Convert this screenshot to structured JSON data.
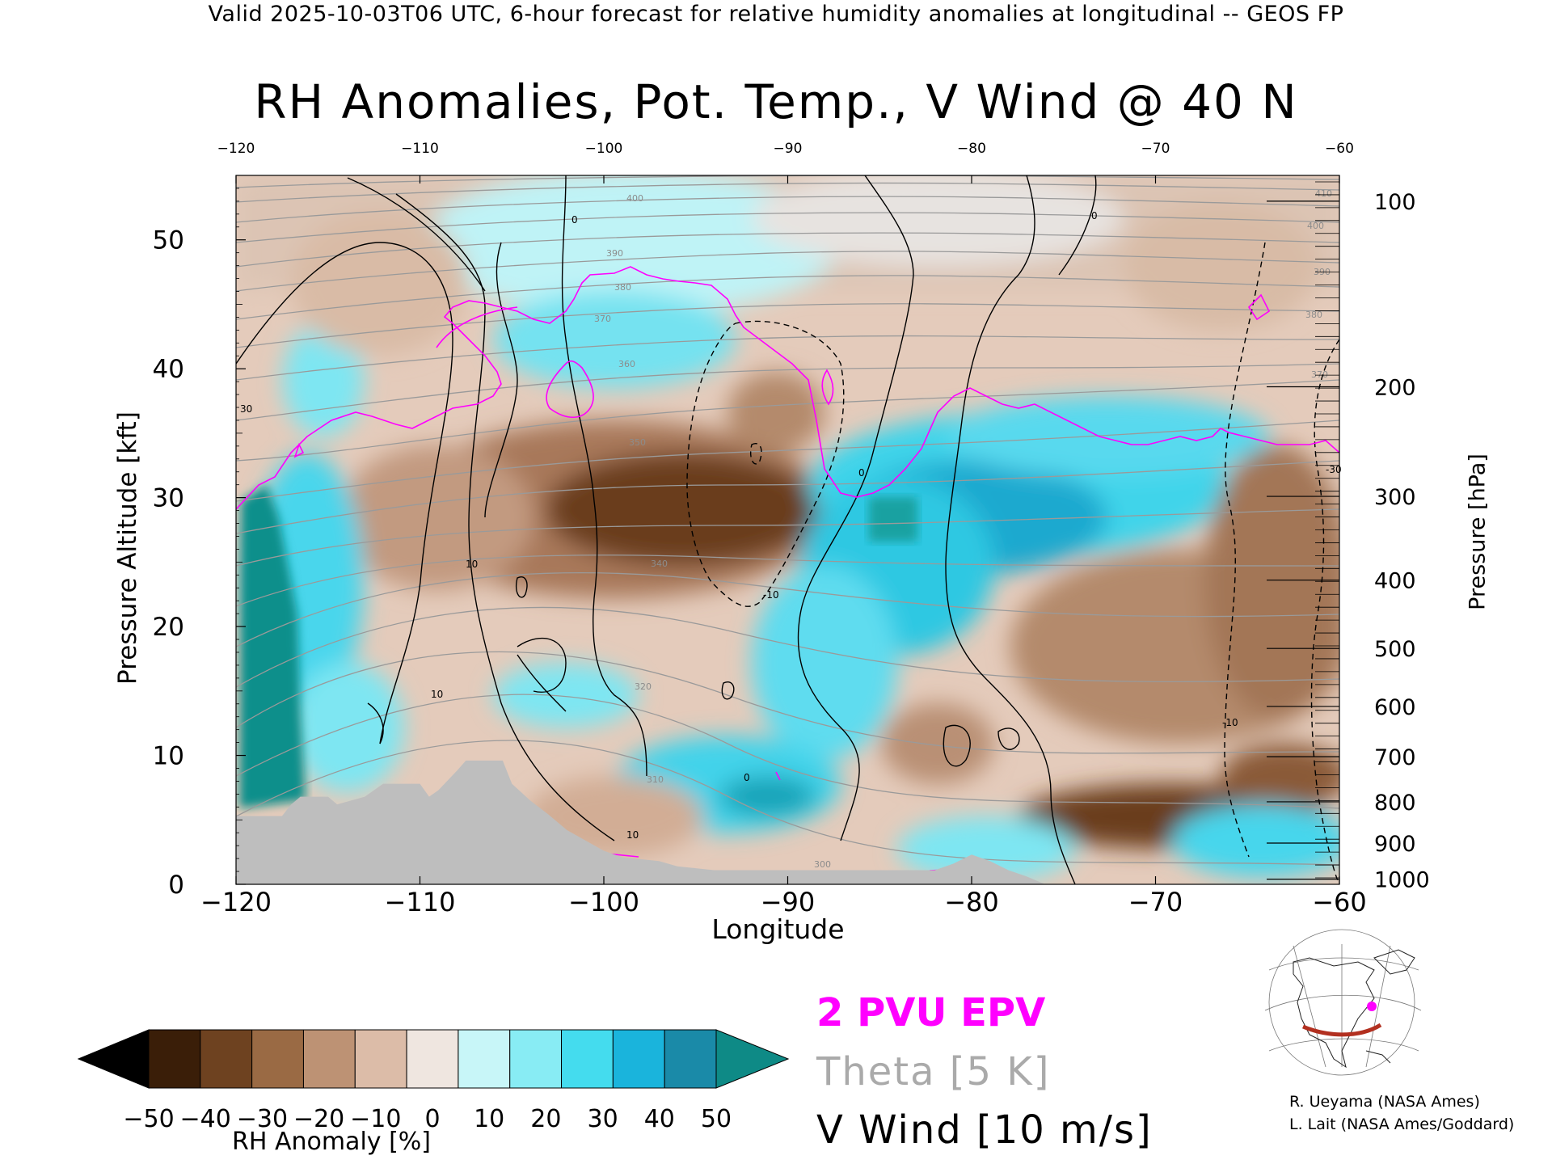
{
  "header": "Valid 2025-10-03T06 UTC, 6-hour forecast for relative humidity anomalies at longitudinal -- GEOS FP",
  "chart_data": {
    "type": "heatmap",
    "title": "RH Anomalies, Pot. Temp., V Wind @ 40 N",
    "xlabel": "Longitude",
    "ylabel_left": "Pressure Altitude [kft]",
    "ylabel_right": "Pressure [hPa]",
    "xlim": [
      -120,
      -60
    ],
    "ylim": [
      0,
      55
    ],
    "x_ticks": [
      "-120",
      "-110",
      "-100",
      "-90",
      "-80",
      "-70",
      "-60"
    ],
    "x_ticks_top": [
      "-120",
      "-110",
      "-100",
      "-90",
      "-80",
      "-70",
      "-60"
    ],
    "y_ticks": [
      "0",
      "10",
      "20",
      "30",
      "40",
      "50"
    ],
    "pressure_ticks": [
      {
        "label": "100",
        "kft": 53
      },
      {
        "label": "200",
        "kft": 38.6
      },
      {
        "label": "300",
        "kft": 30.1
      },
      {
        "label": "400",
        "kft": 23.6
      },
      {
        "label": "500",
        "kft": 18.3
      },
      {
        "label": "600",
        "kft": 13.8
      },
      {
        "label": "700",
        "kft": 9.9
      },
      {
        "label": "800",
        "kft": 6.4
      },
      {
        "label": "900",
        "kft": 3.2
      },
      {
        "label": "1000",
        "kft": 0.4
      }
    ],
    "colorbar": {
      "label": "RH Anomaly [%]",
      "ticks": [
        "-50",
        "-40",
        "-30",
        "-20",
        "-10",
        "0",
        "10",
        "20",
        "30",
        "40",
        "50"
      ],
      "colors": [
        "#000000",
        "#3a1e08",
        "#6e4220",
        "#9a6a44",
        "#bd9274",
        "#dcbca8",
        "#efe6e0",
        "#c8f6f8",
        "#88ecf4",
        "#44dcee",
        "#1ab4dc",
        "#1a8aa8",
        "#0e8a86"
      ]
    },
    "theta_labels": [
      "300",
      "310",
      "320",
      "330",
      "340",
      "350",
      "360",
      "370",
      "380",
      "390",
      "400",
      "410"
    ],
    "vwind_labels": [
      "0",
      "10",
      "-10",
      "30",
      "-30"
    ],
    "terrain_kft": [
      [
        -120,
        5.3
      ],
      [
        -117.5,
        5.3
      ],
      [
        -117,
        6.2
      ],
      [
        -116.5,
        6.8
      ],
      [
        -115,
        6.8
      ],
      [
        -114.5,
        6.2
      ],
      [
        -113,
        6.8
      ],
      [
        -112,
        7.8
      ],
      [
        -110,
        7.8
      ],
      [
        -109.5,
        6.8
      ],
      [
        -109,
        7.3
      ],
      [
        -108,
        8.8
      ],
      [
        -107.5,
        9.6
      ],
      [
        -105.5,
        9.6
      ],
      [
        -105,
        7.8
      ],
      [
        -104,
        6.5
      ],
      [
        -103,
        5.4
      ],
      [
        -102,
        4.2
      ],
      [
        -101,
        3.4
      ],
      [
        -100,
        2.6
      ],
      [
        -99,
        2.1
      ],
      [
        -97,
        1.8
      ],
      [
        -96,
        1.4
      ],
      [
        -94,
        1.1
      ],
      [
        -82,
        1.1
      ],
      [
        -81,
        1.6
      ],
      [
        -80,
        2.3
      ],
      [
        -79,
        1.8
      ],
      [
        -78,
        1.1
      ],
      [
        -77,
        0.6
      ],
      [
        -76,
        0
      ]
    ],
    "legend": [
      "2 PVU EPV",
      "Theta [5 K]",
      "V Wind [10 m/s]"
    ]
  },
  "legend": {
    "epv": "2 PVU EPV",
    "theta": "Theta [5 K]",
    "vwind": "V Wind [10 m/s]"
  },
  "colors": {
    "epv": "#ff00ff",
    "theta": "#aaaaaa",
    "terrain": "#bebebe"
  },
  "credits": {
    "line1": "R. Ueyama (NASA Ames)",
    "line2": "L. Lait (NASA Ames/Goddard)"
  }
}
